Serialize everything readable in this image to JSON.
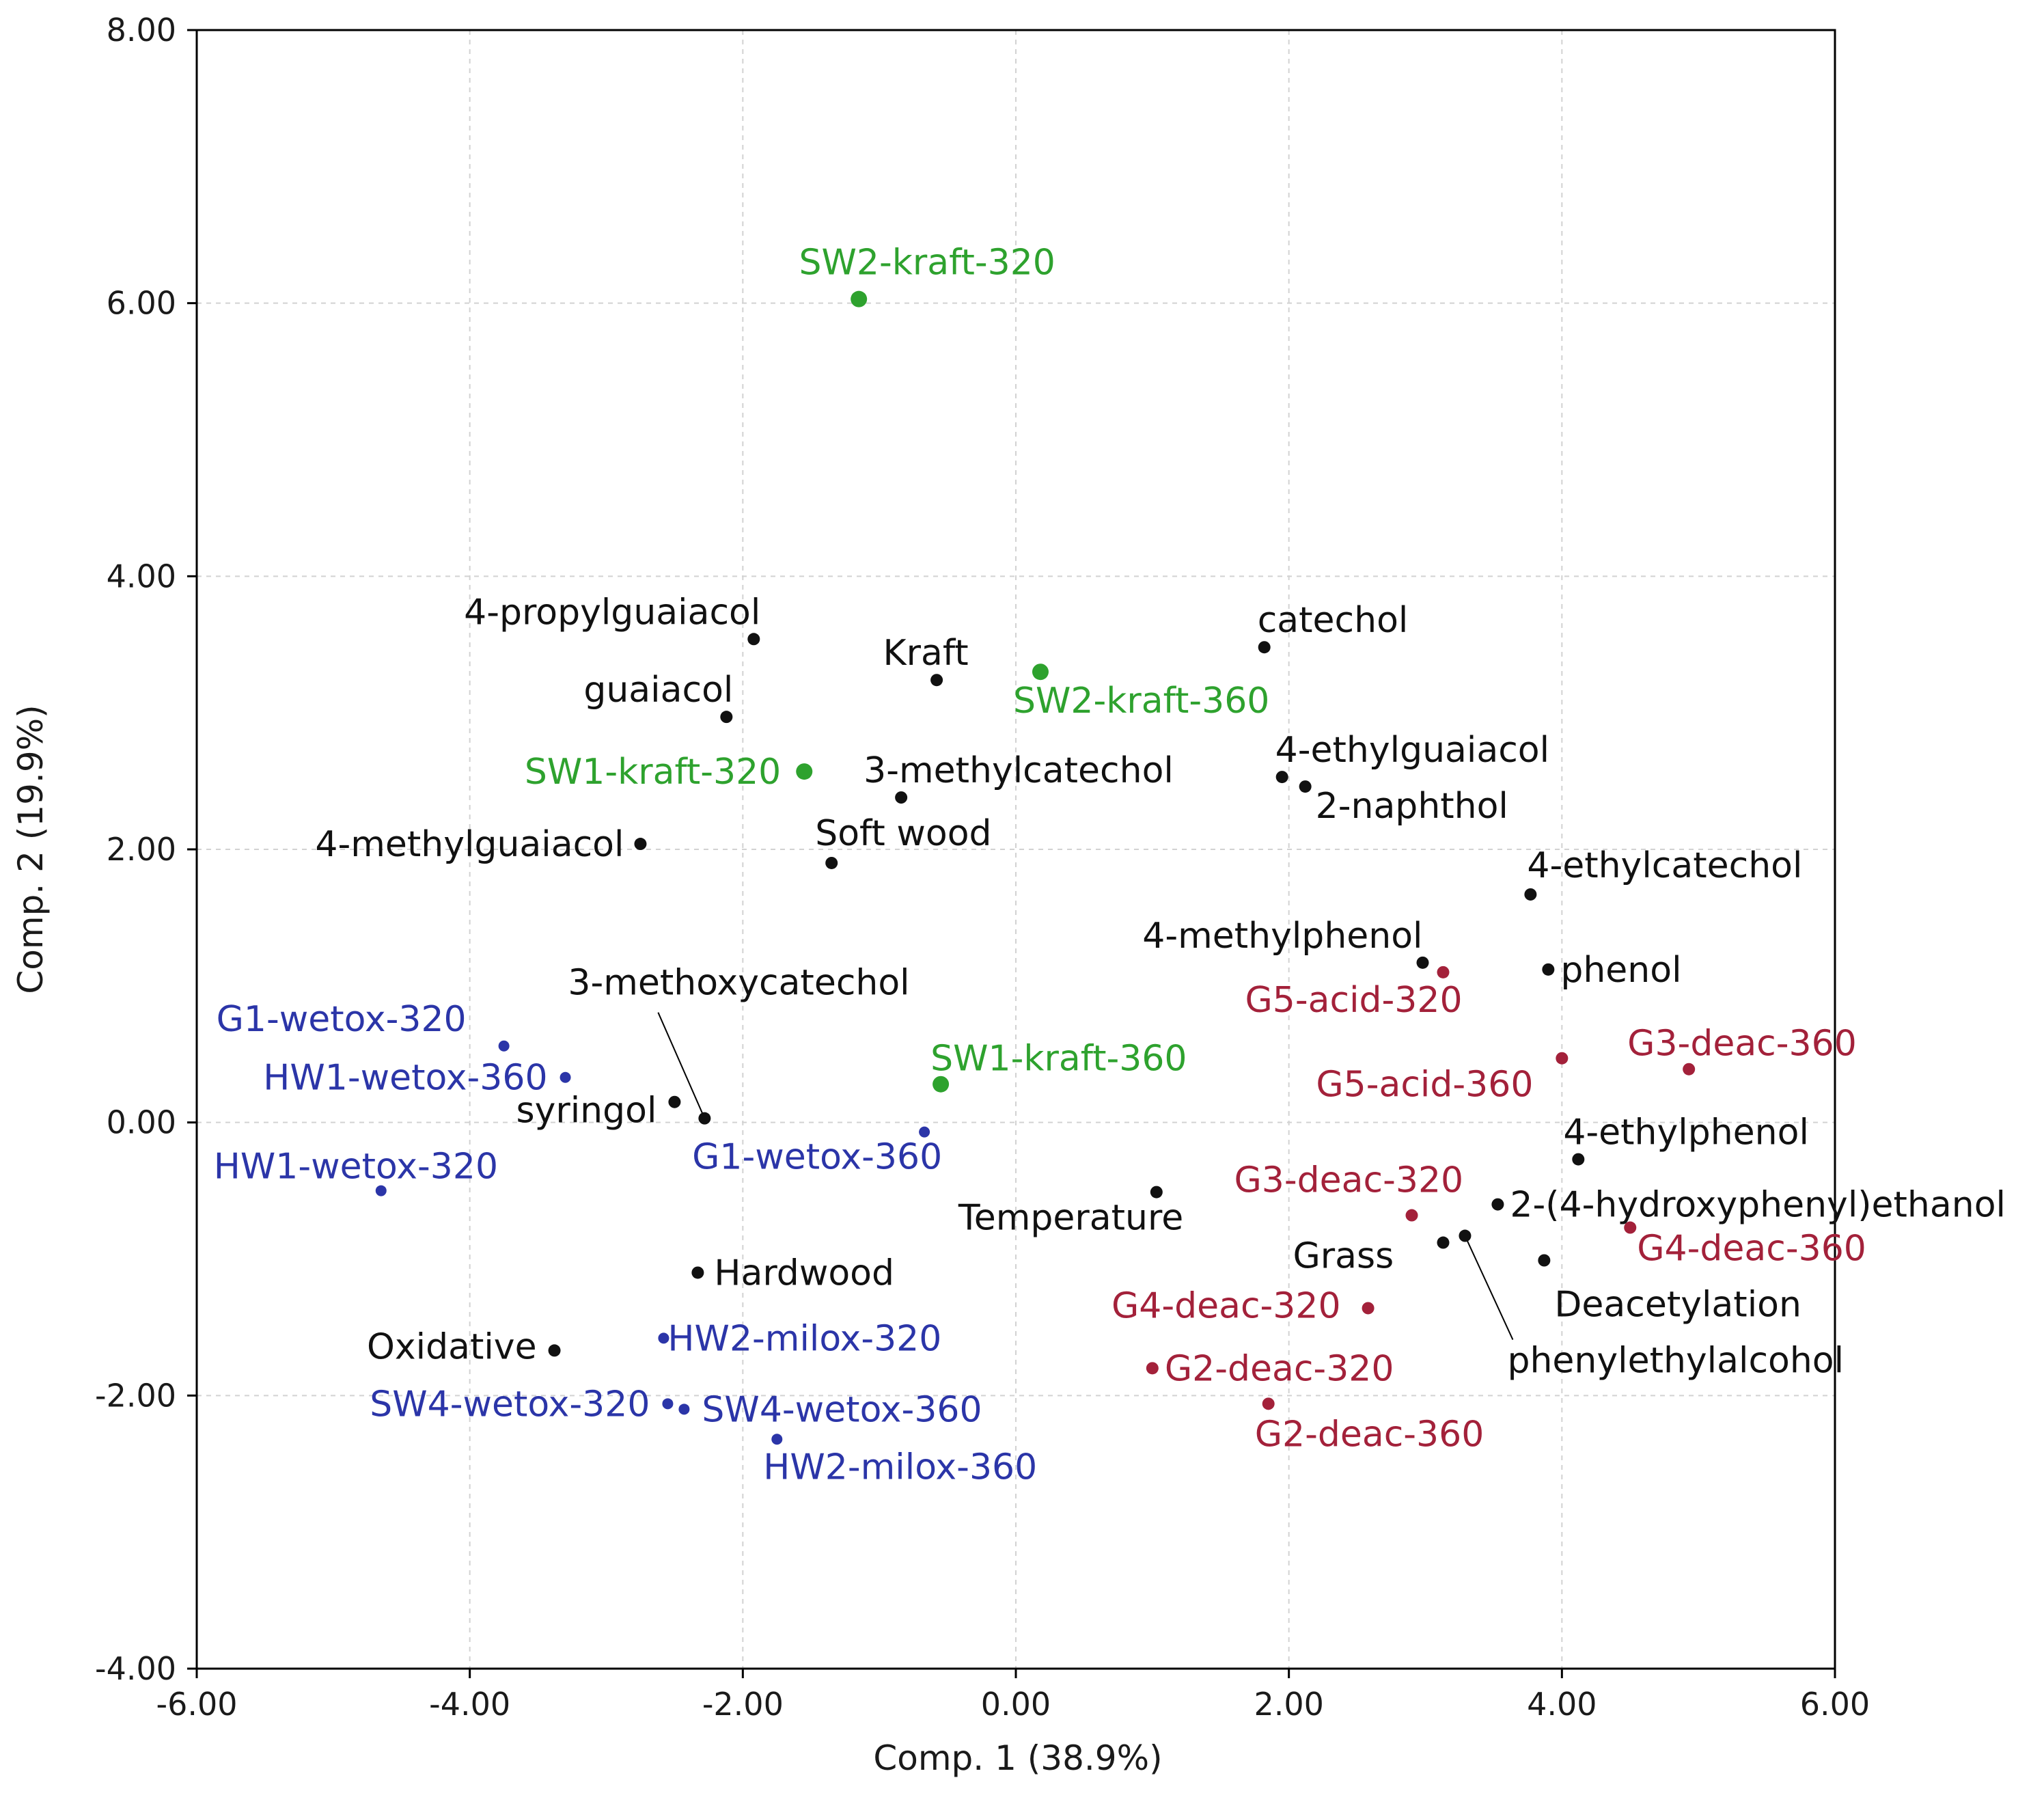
{
  "chart_data": {
    "type": "scatter",
    "title": "",
    "xlabel": "Comp. 1 (38.9%)",
    "ylabel": "Comp. 2 (19.9%)",
    "xlim": [
      -6,
      6
    ],
    "ylim": [
      -4,
      8
    ],
    "xticks": [
      -6,
      -4,
      -2,
      0,
      2,
      4,
      6
    ],
    "yticks": [
      -4,
      -2,
      0,
      2,
      4,
      6,
      8
    ],
    "xtick_labels": [
      "-6.00",
      "-4.00",
      "-2.00",
      "0.00",
      "2.00",
      "4.00",
      "6.00"
    ],
    "ytick_labels": [
      "-4.00",
      "-2.00",
      "0.00",
      "2.00",
      "4.00",
      "6.00",
      "8.00"
    ],
    "grid": true,
    "colors": {
      "loading": "#111111",
      "kraft": "#2ea22e",
      "oxidative": "#2b35a8",
      "grass": "#a3213a"
    },
    "points": [
      {
        "label": "SW2-kraft-320",
        "x": -1.15,
        "y": 6.03,
        "group": "kraft"
      },
      {
        "label": "SW2-kraft-360",
        "x": 0.18,
        "y": 3.3,
        "group": "kraft"
      },
      {
        "label": "SW1-kraft-320",
        "x": -1.55,
        "y": 2.57,
        "group": "kraft"
      },
      {
        "label": "SW1-kraft-360",
        "x": -0.55,
        "y": 0.28,
        "group": "kraft"
      },
      {
        "label": "4-propylguaiacol",
        "x": -1.92,
        "y": 3.54,
        "group": "loading"
      },
      {
        "label": "Kraft",
        "x": -0.58,
        "y": 3.24,
        "group": "loading"
      },
      {
        "label": "catechol",
        "x": 1.82,
        "y": 3.48,
        "group": "loading"
      },
      {
        "label": "guaiacol",
        "x": -2.12,
        "y": 2.97,
        "group": "loading"
      },
      {
        "label": "3-methylcatechol",
        "x": -0.84,
        "y": 2.38,
        "group": "loading"
      },
      {
        "label": "4-ethylguaiacol",
        "x": 1.95,
        "y": 2.53,
        "group": "loading"
      },
      {
        "label": "2-naphthol",
        "x": 2.12,
        "y": 2.46,
        "group": "loading"
      },
      {
        "label": "4-methylguaiacol",
        "x": -2.75,
        "y": 2.04,
        "group": "loading"
      },
      {
        "label": "Soft wood",
        "x": -1.35,
        "y": 1.9,
        "group": "loading"
      },
      {
        "label": "4-ethylcatechol",
        "x": 3.77,
        "y": 1.67,
        "group": "loading"
      },
      {
        "label": "4-methylphenol",
        "x": 2.98,
        "y": 1.17,
        "group": "loading"
      },
      {
        "label": "phenol",
        "x": 3.9,
        "y": 1.12,
        "group": "loading"
      },
      {
        "label": "3-methoxycatechol",
        "x": -2.28,
        "y": 0.03,
        "group": "loading"
      },
      {
        "label": "syringol",
        "x": -2.5,
        "y": 0.15,
        "group": "loading"
      },
      {
        "label": "4-ethylphenol",
        "x": 4.12,
        "y": -0.27,
        "group": "loading"
      },
      {
        "label": "Temperature",
        "x": 1.03,
        "y": -0.51,
        "group": "loading"
      },
      {
        "label": "2-(4-hydroxyphenyl)ethanol",
        "x": 3.53,
        "y": -0.6,
        "group": "loading"
      },
      {
        "label": "Grass",
        "x": 3.13,
        "y": -0.88,
        "group": "loading"
      },
      {
        "label": "phenylethylalcohol",
        "x": 3.29,
        "y": -0.83,
        "group": "loading"
      },
      {
        "label": "Deacetylation",
        "x": 3.87,
        "y": -1.01,
        "group": "loading"
      },
      {
        "label": "Hardwood",
        "x": -2.33,
        "y": -1.1,
        "group": "loading"
      },
      {
        "label": "Oxidative",
        "x": -3.38,
        "y": -1.67,
        "group": "loading"
      },
      {
        "label": "G1-wetox-320",
        "x": -3.75,
        "y": 0.56,
        "group": "oxidative"
      },
      {
        "label": "HW1-wetox-360",
        "x": -3.3,
        "y": 0.33,
        "group": "oxidative"
      },
      {
        "label": "G1-wetox-360",
        "x": -0.67,
        "y": -0.07,
        "group": "oxidative"
      },
      {
        "label": "HW1-wetox-320",
        "x": -4.65,
        "y": -0.5,
        "group": "oxidative"
      },
      {
        "label": "HW2-milox-320",
        "x": -2.58,
        "y": -1.58,
        "group": "oxidative"
      },
      {
        "label": "SW4-wetox-320",
        "x": -2.55,
        "y": -2.06,
        "group": "oxidative"
      },
      {
        "label": "SW4-wetox-360",
        "x": -2.43,
        "y": -2.1,
        "group": "oxidative"
      },
      {
        "label": "HW2-milox-360",
        "x": -1.75,
        "y": -2.32,
        "group": "oxidative"
      },
      {
        "label": "G5-acid-320",
        "x": 3.13,
        "y": 1.1,
        "group": "grass"
      },
      {
        "label": "G5-acid-360",
        "x": 4.0,
        "y": 0.47,
        "group": "grass"
      },
      {
        "label": "G3-deac-360",
        "x": 4.93,
        "y": 0.39,
        "group": "grass"
      },
      {
        "label": "G3-deac-320",
        "x": 2.9,
        "y": -0.68,
        "group": "grass"
      },
      {
        "label": "G4-deac-360",
        "x": 4.5,
        "y": -0.77,
        "group": "grass"
      },
      {
        "label": "G4-deac-320",
        "x": 2.58,
        "y": -1.36,
        "group": "grass"
      },
      {
        "label": "G2-deac-320",
        "x": 1.0,
        "y": -1.8,
        "group": "grass"
      },
      {
        "label": "G2-deac-360",
        "x": 1.85,
        "y": -2.06,
        "group": "grass"
      }
    ]
  }
}
